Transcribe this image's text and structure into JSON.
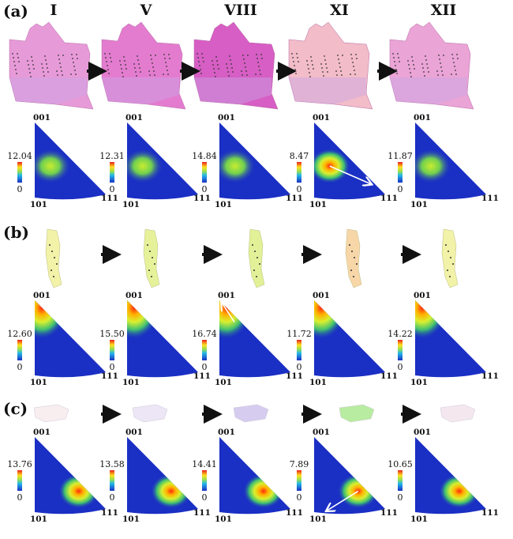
{
  "panels": [
    {
      "label": "(a)",
      "maxima": [
        "12.04",
        "12.31",
        "14.84",
        "8.47",
        "11.87"
      ],
      "arrow_on_figure": 3
    },
    {
      "label": "(b)",
      "maxima": [
        "12.60",
        "15.50",
        "16.74",
        "11.72",
        "14.22"
      ],
      "arrow_on_figure": 2
    },
    {
      "label": "(c)",
      "maxima": [
        "13.76",
        "13.58",
        "14.41",
        "7.89",
        "10.65"
      ],
      "arrow_on_figure": 3
    }
  ],
  "step_labels": [
    "I",
    "V",
    "VIII",
    "XI",
    "XII"
  ],
  "pole_labels": {
    "top": "001",
    "left": "101",
    "right": "111"
  },
  "scale_min": "0",
  "colors": {
    "bg": "#1a2fc4",
    "arrow": "#ffffff"
  }
}
